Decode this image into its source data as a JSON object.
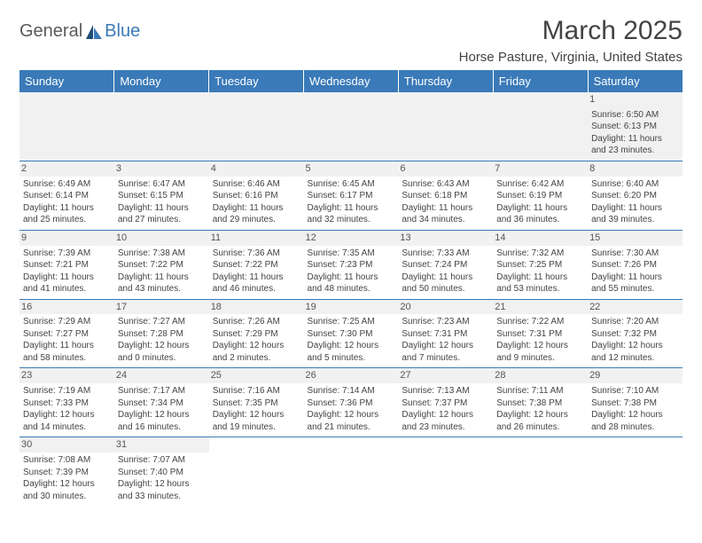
{
  "logo": {
    "text_a": "General",
    "text_b": "Blue"
  },
  "title": "March 2025",
  "location": "Horse Pasture, Virginia, United States",
  "colors": {
    "header_bg": "#3a7ab8",
    "header_fg": "#ffffff",
    "row_border": "#3a7ab8",
    "daynum_bg": "#f1f1f1",
    "text": "#444444"
  },
  "day_headers": [
    "Sunday",
    "Monday",
    "Tuesday",
    "Wednesday",
    "Thursday",
    "Friday",
    "Saturday"
  ],
  "weeks": [
    [
      null,
      null,
      null,
      null,
      null,
      null,
      {
        "n": "1",
        "sr": "6:50 AM",
        "ss": "6:13 PM",
        "dl": "11 hours and 23 minutes."
      }
    ],
    [
      {
        "n": "2",
        "sr": "6:49 AM",
        "ss": "6:14 PM",
        "dl": "11 hours and 25 minutes."
      },
      {
        "n": "3",
        "sr": "6:47 AM",
        "ss": "6:15 PM",
        "dl": "11 hours and 27 minutes."
      },
      {
        "n": "4",
        "sr": "6:46 AM",
        "ss": "6:16 PM",
        "dl": "11 hours and 29 minutes."
      },
      {
        "n": "5",
        "sr": "6:45 AM",
        "ss": "6:17 PM",
        "dl": "11 hours and 32 minutes."
      },
      {
        "n": "6",
        "sr": "6:43 AM",
        "ss": "6:18 PM",
        "dl": "11 hours and 34 minutes."
      },
      {
        "n": "7",
        "sr": "6:42 AM",
        "ss": "6:19 PM",
        "dl": "11 hours and 36 minutes."
      },
      {
        "n": "8",
        "sr": "6:40 AM",
        "ss": "6:20 PM",
        "dl": "11 hours and 39 minutes."
      }
    ],
    [
      {
        "n": "9",
        "sr": "7:39 AM",
        "ss": "7:21 PM",
        "dl": "11 hours and 41 minutes."
      },
      {
        "n": "10",
        "sr": "7:38 AM",
        "ss": "7:22 PM",
        "dl": "11 hours and 43 minutes."
      },
      {
        "n": "11",
        "sr": "7:36 AM",
        "ss": "7:22 PM",
        "dl": "11 hours and 46 minutes."
      },
      {
        "n": "12",
        "sr": "7:35 AM",
        "ss": "7:23 PM",
        "dl": "11 hours and 48 minutes."
      },
      {
        "n": "13",
        "sr": "7:33 AM",
        "ss": "7:24 PM",
        "dl": "11 hours and 50 minutes."
      },
      {
        "n": "14",
        "sr": "7:32 AM",
        "ss": "7:25 PM",
        "dl": "11 hours and 53 minutes."
      },
      {
        "n": "15",
        "sr": "7:30 AM",
        "ss": "7:26 PM",
        "dl": "11 hours and 55 minutes."
      }
    ],
    [
      {
        "n": "16",
        "sr": "7:29 AM",
        "ss": "7:27 PM",
        "dl": "11 hours and 58 minutes."
      },
      {
        "n": "17",
        "sr": "7:27 AM",
        "ss": "7:28 PM",
        "dl": "12 hours and 0 minutes."
      },
      {
        "n": "18",
        "sr": "7:26 AM",
        "ss": "7:29 PM",
        "dl": "12 hours and 2 minutes."
      },
      {
        "n": "19",
        "sr": "7:25 AM",
        "ss": "7:30 PM",
        "dl": "12 hours and 5 minutes."
      },
      {
        "n": "20",
        "sr": "7:23 AM",
        "ss": "7:31 PM",
        "dl": "12 hours and 7 minutes."
      },
      {
        "n": "21",
        "sr": "7:22 AM",
        "ss": "7:31 PM",
        "dl": "12 hours and 9 minutes."
      },
      {
        "n": "22",
        "sr": "7:20 AM",
        "ss": "7:32 PM",
        "dl": "12 hours and 12 minutes."
      }
    ],
    [
      {
        "n": "23",
        "sr": "7:19 AM",
        "ss": "7:33 PM",
        "dl": "12 hours and 14 minutes."
      },
      {
        "n": "24",
        "sr": "7:17 AM",
        "ss": "7:34 PM",
        "dl": "12 hours and 16 minutes."
      },
      {
        "n": "25",
        "sr": "7:16 AM",
        "ss": "7:35 PM",
        "dl": "12 hours and 19 minutes."
      },
      {
        "n": "26",
        "sr": "7:14 AM",
        "ss": "7:36 PM",
        "dl": "12 hours and 21 minutes."
      },
      {
        "n": "27",
        "sr": "7:13 AM",
        "ss": "7:37 PM",
        "dl": "12 hours and 23 minutes."
      },
      {
        "n": "28",
        "sr": "7:11 AM",
        "ss": "7:38 PM",
        "dl": "12 hours and 26 minutes."
      },
      {
        "n": "29",
        "sr": "7:10 AM",
        "ss": "7:38 PM",
        "dl": "12 hours and 28 minutes."
      }
    ],
    [
      {
        "n": "30",
        "sr": "7:08 AM",
        "ss": "7:39 PM",
        "dl": "12 hours and 30 minutes."
      },
      {
        "n": "31",
        "sr": "7:07 AM",
        "ss": "7:40 PM",
        "dl": "12 hours and 33 minutes."
      },
      null,
      null,
      null,
      null,
      null
    ]
  ],
  "labels": {
    "sunrise": "Sunrise:",
    "sunset": "Sunset:",
    "daylight": "Daylight:"
  }
}
